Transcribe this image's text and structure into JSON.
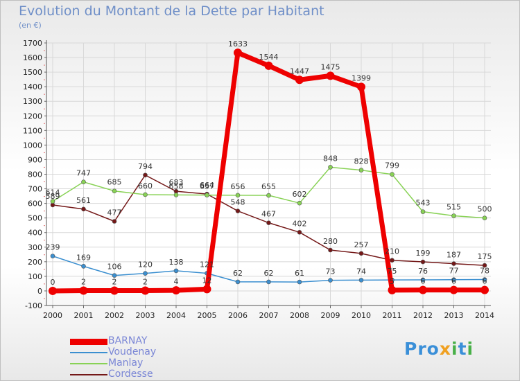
{
  "title": "Evolution du Montant de la Dette par Habitant",
  "subtitle": "(en €)",
  "logo": "Proxiti",
  "chart_data": {
    "type": "line",
    "title": "Evolution du Montant de la Dette par Habitant",
    "subtitle": "(en €)",
    "x": [
      "2000",
      "2001",
      "2002",
      "2003",
      "2004",
      "2005",
      "2006",
      "2007",
      "2008",
      "2009",
      "2010",
      "2011",
      "2012",
      "2013",
      "2014"
    ],
    "ylim": [
      -100,
      1700
    ],
    "yticks": [
      -100,
      0,
      100,
      200,
      300,
      400,
      500,
      600,
      700,
      800,
      900,
      1000,
      1100,
      1200,
      1300,
      1400,
      1500,
      1600,
      1700
    ],
    "grid": true,
    "legend_position": "bottom-left",
    "series": [
      {
        "name": "BARNAY",
        "color": "#ee0000",
        "values": [
          0,
          2,
          2,
          2,
          4,
          12,
          1633,
          1544,
          1447,
          1475,
          1399,
          5,
          6,
          6,
          6
        ],
        "labels": [
          "0",
          "2",
          "2",
          "2",
          "4",
          "12",
          "1633",
          "1544",
          "1447",
          "1475",
          "1399",
          "5",
          "6",
          "6",
          "6"
        ]
      },
      {
        "name": "Voudenay",
        "color": "#3b8fd0",
        "values": [
          239,
          169,
          106,
          120,
          138,
          121,
          62,
          62,
          61,
          73,
          74,
          75,
          76,
          77,
          78
        ],
        "labels": [
          "239",
          "169",
          "106",
          "120",
          "138",
          "121",
          "62",
          "62",
          "61",
          "73",
          "74",
          "75",
          "76",
          "77",
          "78"
        ]
      },
      {
        "name": "Manlay",
        "color": "#88d255",
        "values": [
          614,
          747,
          685,
          660,
          658,
          657,
          656,
          655,
          602,
          848,
          828,
          799,
          543,
          515,
          500
        ],
        "labels": [
          "614",
          "747",
          "685",
          "660",
          "658",
          "657",
          "656",
          "655",
          "602",
          "848",
          "828",
          "799",
          "543",
          "515",
          "500"
        ]
      },
      {
        "name": "Cordesse",
        "color": "#741818",
        "values": [
          589,
          561,
          477,
          794,
          683,
          664,
          548,
          467,
          402,
          280,
          257,
          210,
          199,
          187,
          175
        ],
        "labels": [
          "589",
          "561",
          "477",
          "794",
          "683",
          "664",
          "548",
          "467",
          "402",
          "280",
          "257",
          "210",
          "199",
          "187",
          "175"
        ]
      }
    ]
  }
}
